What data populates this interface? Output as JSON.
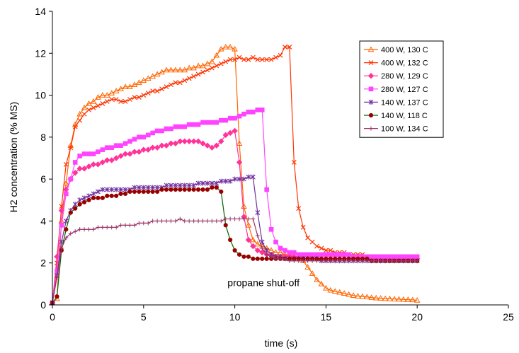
{
  "chart_data": {
    "type": "line",
    "title": "",
    "xlabel": "time (s)",
    "ylabel": "H2 concentration (% MS)",
    "xlim": [
      0,
      25
    ],
    "ylim": [
      0,
      14
    ],
    "xticks": [
      0,
      5,
      10,
      15,
      20,
      25
    ],
    "yticks": [
      0,
      2,
      4,
      6,
      8,
      10,
      12,
      14
    ],
    "grid": false,
    "legend_position": "top-right",
    "annotations": [
      {
        "text": "propane shut-off",
        "x": 9.6,
        "y": 0.9
      }
    ],
    "series": [
      {
        "name": "400 W, 130 C",
        "color": "#FF6600",
        "marker": "triangle",
        "x": [
          0,
          0.25,
          0.5,
          0.75,
          1,
          1.25,
          1.5,
          1.75,
          2,
          2.25,
          2.5,
          2.75,
          3,
          3.25,
          3.5,
          3.75,
          4,
          4.25,
          4.5,
          4.75,
          5,
          5.25,
          5.5,
          5.75,
          6,
          6.25,
          6.5,
          6.75,
          7,
          7.25,
          7.5,
          7.75,
          8,
          8.25,
          8.5,
          8.75,
          9,
          9.25,
          9.5,
          9.75,
          10,
          10.25,
          10.5,
          10.75,
          11,
          11.25,
          11.5,
          11.75,
          12,
          12.25,
          12.5,
          12.75,
          13,
          13.25,
          13.5,
          13.75,
          14,
          14.25,
          14.5,
          14.75,
          15,
          15.25,
          15.5,
          15.75,
          16,
          16.25,
          16.5,
          16.75,
          17,
          17.25,
          17.5,
          17.75,
          18,
          18.25,
          18.5,
          18.75,
          19,
          19.25,
          19.5,
          19.75,
          20
        ],
        "y": [
          0.1,
          0.3,
          4.0,
          5.8,
          7.6,
          8.6,
          9.1,
          9.4,
          9.6,
          9.7,
          9.9,
          10.0,
          10.0,
          10.1,
          10.2,
          10.3,
          10.4,
          10.4,
          10.5,
          10.6,
          10.7,
          10.8,
          10.9,
          11.0,
          11.1,
          11.2,
          11.2,
          11.2,
          11.2,
          11.2,
          11.3,
          11.3,
          11.4,
          11.4,
          11.5,
          11.6,
          11.9,
          12.2,
          12.3,
          12.3,
          12.2,
          7.7,
          4.7,
          3.8,
          3.1,
          2.9,
          2.8,
          2.7,
          2.6,
          2.5,
          2.5,
          2.4,
          2.4,
          2.3,
          2.3,
          2.1,
          1.8,
          1.5,
          1.2,
          1.0,
          0.8,
          0.7,
          0.65,
          0.6,
          0.55,
          0.5,
          0.45,
          0.42,
          0.4,
          0.38,
          0.35,
          0.33,
          0.32,
          0.3,
          0.29,
          0.28,
          0.27,
          0.26,
          0.25,
          0.24,
          0.22
        ]
      },
      {
        "name": "400 W, 132 C",
        "color": "#FF3300",
        "marker": "x",
        "x": [
          0,
          0.25,
          0.5,
          0.75,
          1,
          1.25,
          1.5,
          1.75,
          2,
          2.25,
          2.5,
          2.75,
          3,
          3.25,
          3.5,
          3.75,
          4,
          4.25,
          4.5,
          4.75,
          5,
          5.25,
          5.5,
          5.75,
          6,
          6.25,
          6.5,
          6.75,
          7,
          7.25,
          7.5,
          7.75,
          8,
          8.25,
          8.5,
          8.75,
          9,
          9.25,
          9.5,
          9.75,
          10,
          10.25,
          10.5,
          10.75,
          11,
          11.25,
          11.5,
          11.75,
          12,
          12.25,
          12.5,
          12.75,
          13,
          13.25,
          13.5,
          13.75,
          14,
          14.25,
          14.5,
          14.75,
          15,
          15.25,
          15.5,
          15.75,
          16,
          16.25,
          16.5,
          16.75,
          17,
          17.25,
          17.5,
          17.75,
          18,
          18.25,
          18.5,
          18.75,
          19,
          19.25,
          19.5,
          19.75,
          20
        ],
        "y": [
          0.1,
          2.0,
          4.7,
          6.7,
          7.5,
          8.5,
          8.8,
          9.1,
          9.3,
          9.4,
          9.5,
          9.6,
          9.7,
          9.8,
          9.8,
          9.7,
          9.7,
          9.8,
          9.9,
          9.9,
          10.0,
          10.1,
          10.2,
          10.2,
          10.3,
          10.4,
          10.5,
          10.6,
          10.6,
          10.7,
          10.8,
          10.9,
          11.0,
          11.1,
          11.2,
          11.3,
          11.4,
          11.5,
          11.6,
          11.7,
          11.7,
          11.8,
          11.7,
          11.7,
          11.8,
          11.7,
          11.7,
          11.7,
          11.7,
          11.8,
          11.9,
          12.3,
          12.3,
          6.8,
          4.6,
          3.7,
          3.2,
          3.0,
          2.8,
          2.7,
          2.6,
          2.6,
          2.5,
          2.5,
          2.5,
          2.4,
          2.4,
          2.4,
          2.4,
          2.3,
          2.3,
          2.3,
          2.3,
          2.3,
          2.3,
          2.3,
          2.3,
          2.2,
          2.2,
          2.2,
          2.2
        ]
      },
      {
        "name": "280 W, 129 C",
        "color": "#FF3399",
        "marker": "diamond",
        "x": [
          0,
          0.25,
          0.5,
          0.75,
          1,
          1.25,
          1.5,
          1.75,
          2,
          2.25,
          2.5,
          2.75,
          3,
          3.25,
          3.5,
          3.75,
          4,
          4.25,
          4.5,
          4.75,
          5,
          5.25,
          5.5,
          5.75,
          6,
          6.25,
          6.5,
          6.75,
          7,
          7.25,
          7.5,
          7.75,
          8,
          8.25,
          8.5,
          8.75,
          9,
          9.25,
          9.5,
          9.75,
          10,
          10.25,
          10.5,
          10.75,
          11,
          11.25,
          11.5,
          11.75,
          12,
          12.25,
          12.5,
          12.75,
          13,
          13.25,
          13.5,
          13.75,
          14,
          14.25,
          14.5,
          14.75,
          15,
          15.25,
          15.5,
          15.75,
          16,
          16.25,
          16.5,
          16.75,
          17,
          17.25,
          17.5,
          17.75,
          18,
          18.25,
          18.5,
          18.75,
          19,
          19.25,
          19.5,
          19.75,
          20
        ],
        "y": [
          0.1,
          2.3,
          4.5,
          5.5,
          6.0,
          6.3,
          6.5,
          6.5,
          6.6,
          6.7,
          6.7,
          6.8,
          6.9,
          6.9,
          7.0,
          7.1,
          7.2,
          7.2,
          7.3,
          7.3,
          7.4,
          7.4,
          7.5,
          7.5,
          7.6,
          7.6,
          7.7,
          7.7,
          7.8,
          7.8,
          7.8,
          7.8,
          7.8,
          7.7,
          7.6,
          7.5,
          7.6,
          7.8,
          8.1,
          8.2,
          8.3,
          6.8,
          4.2,
          3.1,
          2.8,
          2.6,
          2.5,
          2.4,
          2.4,
          2.3,
          2.3,
          2.3,
          2.3,
          2.3,
          2.2,
          2.2,
          2.2,
          2.2,
          2.2,
          2.2,
          2.2,
          2.2,
          2.2,
          2.2,
          2.2,
          2.2,
          2.2,
          2.2,
          2.2,
          2.2,
          2.2,
          2.2,
          2.2,
          2.2,
          2.2,
          2.2,
          2.2,
          2.2,
          2.2,
          2.2,
          2.2
        ]
      },
      {
        "name": "280 W, 127 C",
        "color": "#FF44FF",
        "marker": "square",
        "x": [
          0,
          0.25,
          0.5,
          0.75,
          1,
          1.25,
          1.5,
          1.75,
          2,
          2.25,
          2.5,
          2.75,
          3,
          3.25,
          3.5,
          3.75,
          4,
          4.25,
          4.5,
          4.75,
          5,
          5.25,
          5.5,
          5.75,
          6,
          6.25,
          6.5,
          6.75,
          7,
          7.25,
          7.5,
          7.75,
          8,
          8.25,
          8.5,
          8.75,
          9,
          9.25,
          9.5,
          9.75,
          10,
          10.25,
          10.5,
          10.75,
          11,
          11.25,
          11.5,
          11.75,
          12,
          12.25,
          12.5,
          12.75,
          13,
          13.25,
          13.5,
          13.75,
          14,
          14.25,
          14.5,
          14.75,
          15,
          15.25,
          15.5,
          15.75,
          16,
          16.25,
          16.5,
          16.75,
          17,
          17.25,
          17.5,
          17.75,
          18,
          18.25,
          18.5,
          18.75,
          19,
          19.25,
          19.5,
          19.75,
          20
        ],
        "y": [
          0.1,
          1.6,
          3.8,
          5.3,
          6.0,
          6.8,
          7.1,
          7.2,
          7.2,
          7.2,
          7.3,
          7.4,
          7.5,
          7.5,
          7.6,
          7.6,
          7.7,
          7.8,
          7.9,
          8.0,
          8.0,
          8.1,
          8.2,
          8.3,
          8.3,
          8.4,
          8.4,
          8.5,
          8.5,
          8.5,
          8.6,
          8.6,
          8.6,
          8.7,
          8.7,
          8.7,
          8.7,
          8.8,
          8.8,
          8.9,
          8.9,
          9.0,
          9.1,
          9.2,
          9.2,
          9.3,
          9.3,
          5.5,
          3.6,
          3.0,
          2.7,
          2.6,
          2.5,
          2.5,
          2.4,
          2.4,
          2.4,
          2.4,
          2.4,
          2.4,
          2.4,
          2.4,
          2.4,
          2.4,
          2.4,
          2.4,
          2.3,
          2.3,
          2.3,
          2.3,
          2.3,
          2.3,
          2.3,
          2.3,
          2.3,
          2.3,
          2.3,
          2.3,
          2.3,
          2.3,
          2.3
        ]
      },
      {
        "name": "140 W, 137 C",
        "color": "#7030A0",
        "marker": "asterisk",
        "x": [
          0,
          0.25,
          0.5,
          0.75,
          1,
          1.25,
          1.5,
          1.75,
          2,
          2.25,
          2.5,
          2.75,
          3,
          3.25,
          3.5,
          3.75,
          4,
          4.25,
          4.5,
          4.75,
          5,
          5.25,
          5.5,
          5.75,
          6,
          6.25,
          6.5,
          6.75,
          7,
          7.25,
          7.5,
          7.75,
          8,
          8.25,
          8.5,
          8.75,
          9,
          9.25,
          9.5,
          9.75,
          10,
          10.25,
          10.5,
          10.75,
          11,
          11.25,
          11.5,
          11.75,
          12,
          12.25,
          12.5,
          12.75,
          13,
          13.25,
          13.5,
          13.75,
          14,
          14.25,
          14.5,
          14.75,
          15,
          15.25,
          15.5,
          15.75,
          16,
          16.25,
          16.5,
          16.75,
          17,
          17.25,
          17.5,
          17.75,
          18,
          18.25,
          18.5,
          18.75,
          19,
          19.25,
          19.5,
          19.75,
          20
        ],
        "y": [
          0.1,
          1.4,
          3.0,
          4.0,
          4.5,
          4.8,
          5.0,
          5.1,
          5.2,
          5.3,
          5.4,
          5.5,
          5.5,
          5.5,
          5.5,
          5.5,
          5.5,
          5.5,
          5.6,
          5.6,
          5.6,
          5.6,
          5.6,
          5.6,
          5.6,
          5.7,
          5.7,
          5.7,
          5.7,
          5.7,
          5.7,
          5.7,
          5.8,
          5.8,
          5.8,
          5.8,
          5.8,
          5.9,
          5.9,
          5.9,
          6.0,
          6.0,
          6.0,
          6.1,
          6.1,
          4.4,
          3.0,
          2.6,
          2.4,
          2.3,
          2.3,
          2.2,
          2.2,
          2.2,
          2.2,
          2.2,
          2.2,
          2.2,
          2.2,
          2.1,
          2.1,
          2.1,
          2.1,
          2.1,
          2.1,
          2.1,
          2.1,
          2.1,
          2.1,
          2.1,
          2.1,
          2.1,
          2.1,
          2.1,
          2.1,
          2.1,
          2.1,
          2.1,
          2.1,
          2.1,
          2.1
        ]
      },
      {
        "name": "140 W, 118 C",
        "color": "#990000",
        "marker": "circle",
        "line_color": "#006600",
        "x": [
          0,
          0.25,
          0.5,
          0.75,
          1,
          1.25,
          1.5,
          1.75,
          2,
          2.25,
          2.5,
          2.75,
          3,
          3.25,
          3.5,
          3.75,
          4,
          4.25,
          4.5,
          4.75,
          5,
          5.25,
          5.5,
          5.75,
          6,
          6.25,
          6.5,
          6.75,
          7,
          7.25,
          7.5,
          7.75,
          8,
          8.25,
          8.5,
          8.75,
          9,
          9.25,
          9.5,
          9.75,
          10,
          10.25,
          10.5,
          10.75,
          11,
          11.25,
          11.5,
          11.75,
          12,
          12.25,
          12.5,
          12.75,
          13,
          13.25,
          13.5,
          13.75,
          14,
          14.25,
          14.5,
          14.75,
          15,
          15.25,
          15.5,
          15.75,
          16,
          16.25,
          16.5,
          16.75,
          17,
          17.25,
          17.5,
          17.75,
          18,
          18.25,
          18.5,
          18.75,
          19,
          19.25,
          19.5,
          19.75,
          20
        ],
        "y": [
          0.1,
          0.4,
          2.6,
          3.6,
          4.4,
          4.6,
          4.8,
          4.9,
          5.0,
          5.1,
          5.1,
          5.1,
          5.2,
          5.2,
          5.2,
          5.3,
          5.3,
          5.4,
          5.4,
          5.4,
          5.4,
          5.4,
          5.4,
          5.4,
          5.5,
          5.5,
          5.5,
          5.5,
          5.5,
          5.5,
          5.5,
          5.5,
          5.5,
          5.5,
          5.5,
          5.6,
          5.6,
          5.4,
          3.8,
          3.1,
          2.6,
          2.4,
          2.3,
          2.3,
          2.2,
          2.2,
          2.2,
          2.2,
          2.2,
          2.2,
          2.2,
          2.2,
          2.2,
          2.2,
          2.2,
          2.2,
          2.2,
          2.2,
          2.2,
          2.2,
          2.2,
          2.2,
          2.2,
          2.2,
          2.2,
          2.2,
          2.2,
          2.2,
          2.2,
          2.2,
          2.1,
          2.1,
          2.1,
          2.1,
          2.1,
          2.1,
          2.1,
          2.1,
          2.1,
          2.1,
          2.1
        ]
      },
      {
        "name": "100 W, 134 C",
        "color": "#993366",
        "marker": "plus",
        "x": [
          0,
          0.25,
          0.5,
          0.75,
          1,
          1.25,
          1.5,
          1.75,
          2,
          2.25,
          2.5,
          2.75,
          3,
          3.25,
          3.5,
          3.75,
          4,
          4.25,
          4.5,
          4.75,
          5,
          5.25,
          5.5,
          5.75,
          6,
          6.25,
          6.5,
          6.75,
          7,
          7.25,
          7.5,
          7.75,
          8,
          8.25,
          8.5,
          8.75,
          9,
          9.25,
          9.5,
          9.75,
          10,
          10.25,
          10.5,
          10.75,
          11,
          11.25,
          11.5,
          11.75,
          12,
          12.25,
          12.5,
          12.75,
          13,
          13.25,
          13.5,
          13.75,
          14,
          14.25,
          14.5,
          14.75,
          15,
          15.25,
          15.5,
          15.75,
          16,
          16.25,
          16.5,
          16.75,
          17,
          17.25,
          17.5,
          17.75,
          18,
          18.25,
          18.5,
          18.75,
          19,
          19.25,
          19.5,
          19.75,
          20
        ],
        "y": [
          0.1,
          1.3,
          2.7,
          3.2,
          3.4,
          3.5,
          3.6,
          3.6,
          3.6,
          3.6,
          3.7,
          3.7,
          3.7,
          3.7,
          3.7,
          3.8,
          3.8,
          3.8,
          3.8,
          3.9,
          3.9,
          3.9,
          4.0,
          4.0,
          4.0,
          4.0,
          4.0,
          4.0,
          4.1,
          4.0,
          4.0,
          4.0,
          4.0,
          4.0,
          4.0,
          4.0,
          4.0,
          4.0,
          4.1,
          4.1,
          4.1,
          4.1,
          4.1,
          4.1,
          4.1,
          3.3,
          2.7,
          2.4,
          2.3,
          2.2,
          2.2,
          2.2,
          2.1,
          2.1,
          2.1,
          2.1,
          2.1,
          2.1,
          2.1,
          2.1,
          2.1,
          2.1,
          2.1,
          2.1,
          2.1,
          2.1,
          2.1,
          2.1,
          2.1,
          2.1,
          2.1,
          2.1,
          2.1,
          2.1,
          2.1,
          2.1,
          2.1,
          2.1,
          2.1,
          2.1,
          2.1
        ]
      }
    ]
  }
}
